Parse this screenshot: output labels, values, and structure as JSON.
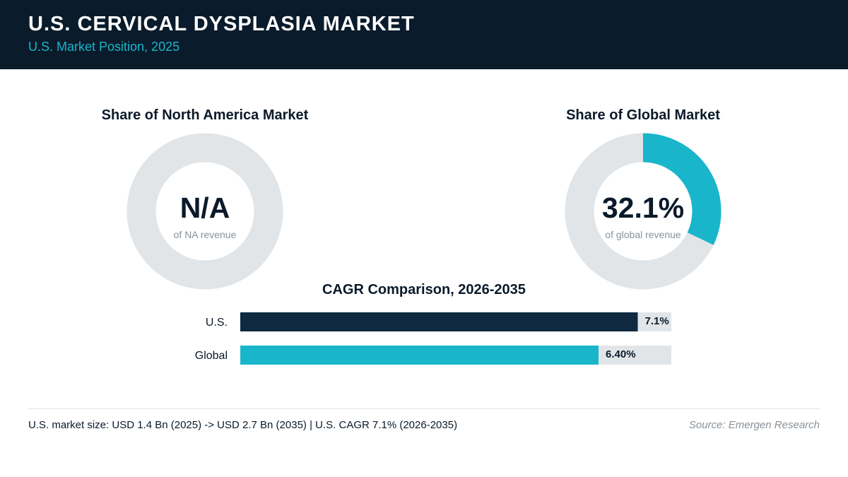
{
  "header": {
    "title": "U.S. CERVICAL DYSPLASIA MARKET",
    "subtitle": "U.S. Market Position, 2025"
  },
  "colors": {
    "header_bg": "#0a1b2b",
    "accent": "#19b6cb",
    "navy": "#0e2940",
    "track": "#e1e5e8"
  },
  "chart_data": [
    {
      "type": "pie",
      "title": "Share of North America Market",
      "value_label": "N/A",
      "caption": "of NA revenue",
      "value": null
    },
    {
      "type": "pie",
      "title": "Share of Global Market",
      "value_label": "32.1%",
      "caption": "of global revenue",
      "value": 32.1
    },
    {
      "type": "bar",
      "orientation": "horizontal",
      "title": "CAGR Comparison, 2026-2035",
      "categories": [
        "U.S.",
        "Global"
      ],
      "values": [
        7.1,
        6.4
      ],
      "value_labels": [
        "7.1%",
        "6.40%"
      ],
      "xlim": [
        0,
        7.7
      ]
    }
  ],
  "footer": {
    "note": "U.S. market size: USD 1.4 Bn (2025) -> USD 2.7 Bn (2035)  |  U.S. CAGR 7.1% (2026-2035)",
    "source": "Source: Emergen Research"
  }
}
